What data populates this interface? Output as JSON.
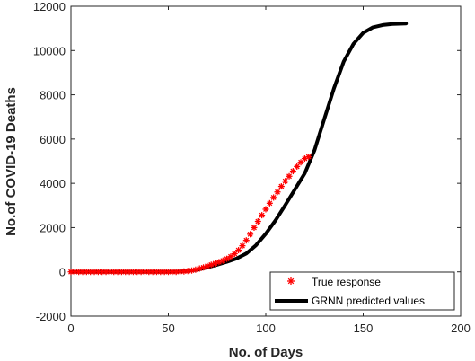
{
  "chart_data": {
    "type": "line",
    "title": "",
    "xlabel": "No. of Days",
    "ylabel": "No.of COVID-19 Deaths",
    "xlim": [
      0,
      200
    ],
    "ylim": [
      -2000,
      12000
    ],
    "xticks": [
      0,
      50,
      100,
      150,
      200
    ],
    "yticks": [
      -2000,
      0,
      2000,
      4000,
      6000,
      8000,
      10000,
      12000
    ],
    "grid": false,
    "legend_position": "bottom-right",
    "series": [
      {
        "name": "True response",
        "style": "markers",
        "marker": "asterisk",
        "color": "#ff0000",
        "x": [
          0,
          2,
          4,
          6,
          8,
          10,
          12,
          14,
          16,
          18,
          20,
          22,
          24,
          26,
          28,
          30,
          32,
          34,
          36,
          38,
          40,
          42,
          44,
          46,
          48,
          50,
          52,
          54,
          56,
          58,
          60,
          62,
          64,
          66,
          68,
          70,
          72,
          74,
          76,
          78,
          80,
          82,
          84,
          86,
          88,
          90,
          92,
          94,
          96,
          98,
          100,
          102,
          104,
          106,
          108,
          110,
          112,
          114,
          116,
          118,
          120,
          122
        ],
        "y": [
          0,
          0,
          0,
          0,
          0,
          0,
          0,
          0,
          0,
          0,
          0,
          0,
          0,
          0,
          0,
          0,
          0,
          0,
          0,
          0,
          0,
          0,
          0,
          0,
          0,
          0,
          0,
          0,
          10,
          20,
          40,
          60,
          100,
          150,
          200,
          260,
          320,
          380,
          440,
          510,
          590,
          690,
          820,
          980,
          1180,
          1420,
          1700,
          2000,
          2280,
          2560,
          2830,
          3100,
          3360,
          3610,
          3860,
          4100,
          4320,
          4550,
          4760,
          4950,
          5120,
          5200
        ]
      },
      {
        "name": "GRNN predicted values",
        "style": "line",
        "color": "#000000",
        "x": [
          0,
          10,
          20,
          30,
          40,
          50,
          55,
          60,
          65,
          70,
          75,
          80,
          85,
          90,
          95,
          100,
          105,
          110,
          115,
          120,
          125,
          130,
          135,
          140,
          145,
          150,
          155,
          160,
          165,
          172
        ],
        "y": [
          0,
          0,
          0,
          0,
          0,
          0,
          10,
          40,
          100,
          200,
          320,
          450,
          600,
          830,
          1200,
          1720,
          2330,
          3020,
          3730,
          4450,
          5500,
          6900,
          8300,
          9500,
          10300,
          10800,
          11050,
          11150,
          11200,
          11220
        ]
      }
    ]
  }
}
